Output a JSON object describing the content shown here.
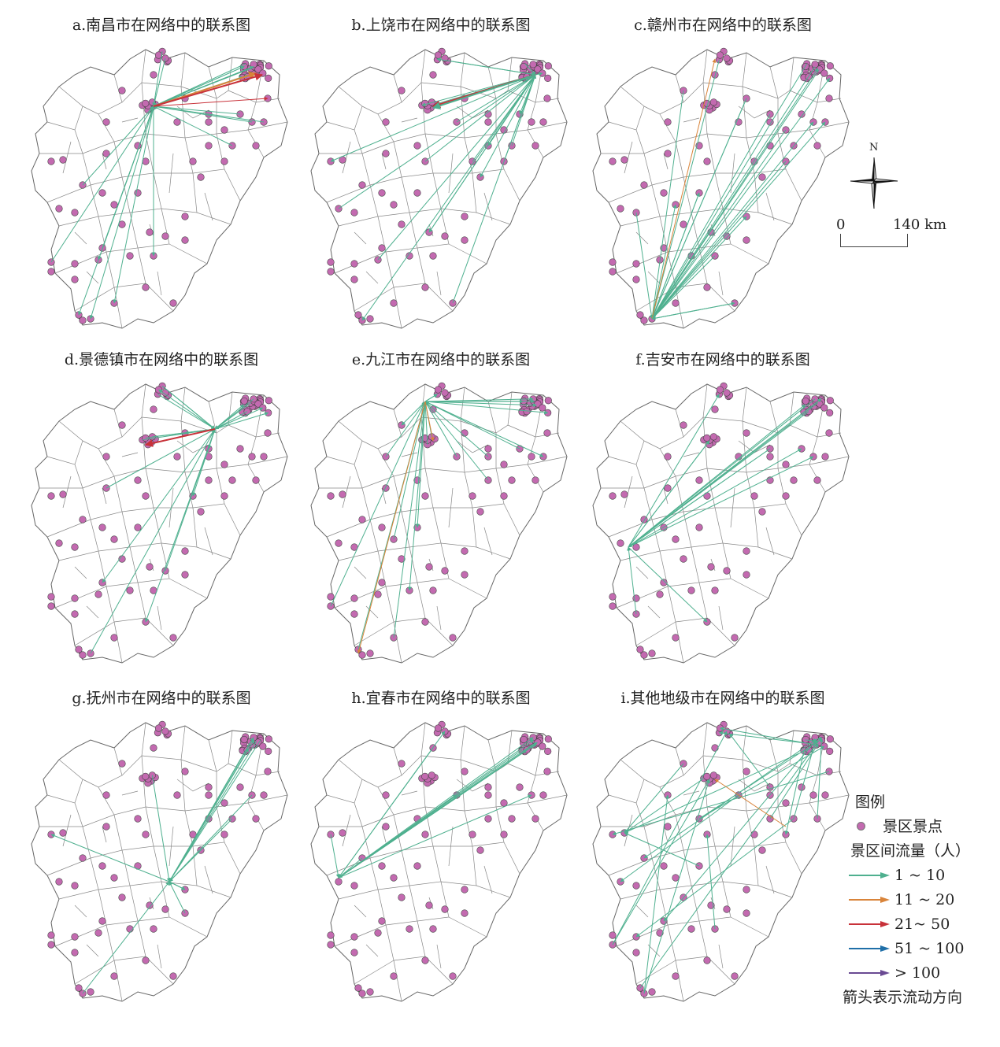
{
  "panels": [
    {
      "title": "a.南昌市在网络中的联系图"
    },
    {
      "title": "b.上饶市在网络中的联系图"
    },
    {
      "title": "c.赣州市在网络中的联系图"
    },
    {
      "title": "d.景德镇市在网络中的联系图"
    },
    {
      "title": "e.九江市在网络中的联系图"
    },
    {
      "title": "f.吉安市在网络中的联系图"
    },
    {
      "title": "g.抚州市在网络中的联系图"
    },
    {
      "title": "h.宜春市在网络中的联系图"
    },
    {
      "title": "i.其他地级市在网络中的联系图"
    }
  ],
  "compass": {
    "north_label": "N"
  },
  "scale": {
    "start": "0",
    "end": "140 km"
  },
  "legend": {
    "title": "图例",
    "spot_label": "景区景点",
    "flow_title": "景区间流量（人）",
    "classes": [
      {
        "label": "1 ~ 10",
        "color": "#4fb08f"
      },
      {
        "label": "11 ~ 20",
        "color": "#d9843a"
      },
      {
        "label": "21~ 50",
        "color": "#c8323a"
      },
      {
        "label": "51 ~ 100",
        "color": "#1f6fa8"
      },
      {
        "label": "> 100",
        "color": "#6a4a93"
      }
    ],
    "note": "箭头表示流动方向"
  },
  "colors": {
    "spot": "#c36ab0",
    "boundary": "#666666"
  }
}
